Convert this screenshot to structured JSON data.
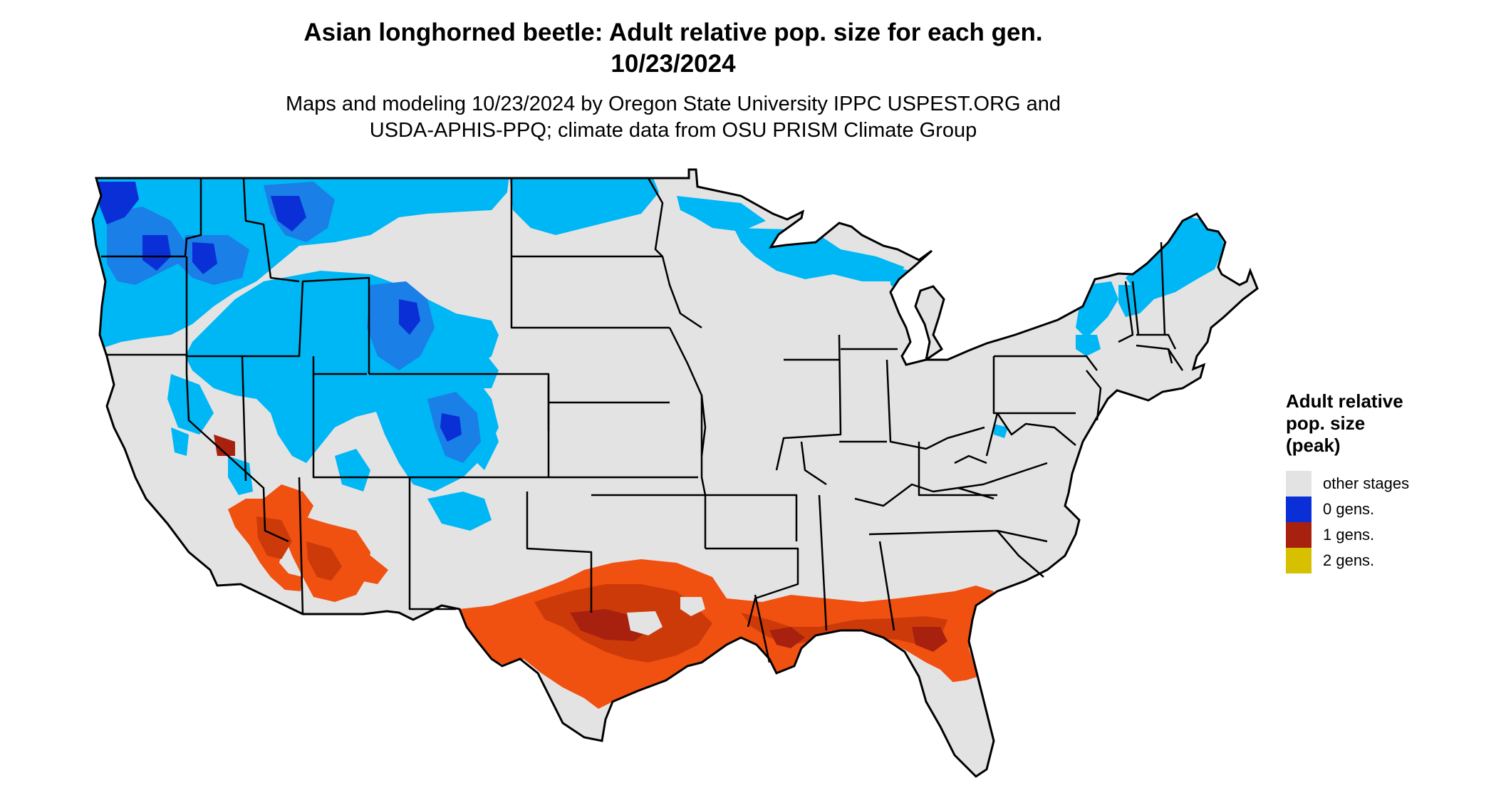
{
  "title_line1": "Asian longhorned beetle: Adult relative pop. size for each gen.",
  "title_line2": "10/23/2024",
  "subtitle_line1": "Maps and modeling 10/23/2024 by Oregon State University IPPC USPEST.ORG and",
  "subtitle_line2": "USDA-APHIS-PPQ; climate data from OSU PRISM Climate Group",
  "legend": {
    "title_lines": [
      "Adult relative",
      "pop. size",
      "(peak)"
    ],
    "items": [
      {
        "label": "other stages",
        "color": "#e3e3e3"
      },
      {
        "label": "0 gens.",
        "color": "#0a2fd6"
      },
      {
        "label": "1 gens.",
        "color": "#a8210e"
      },
      {
        "label": "2 gens.",
        "color": "#d7c000"
      }
    ]
  },
  "colors": {
    "land": "#e3e3e3",
    "cold_light": "#00b7f5",
    "cold_mid": "#1a7fe6",
    "cold_dark": "#0a2fd6",
    "warm_light": "#f05010",
    "warm_mid": "#cc3a0a",
    "warm_dark": "#a8210e",
    "border": "#000000"
  }
}
